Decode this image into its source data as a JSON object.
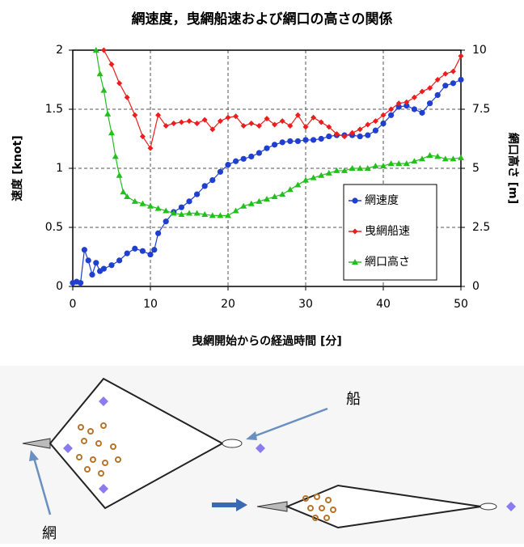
{
  "chart_data": {
    "type": "line",
    "title": "網速度，曳網船速および網口の高さの関係",
    "xlabel": "曳網開始からの経過時間 [分]",
    "ylabel": "速度 [knot]",
    "y2label": "網口高さ [m]",
    "xlim": [
      0,
      50
    ],
    "xticks": [
      0,
      10,
      20,
      30,
      40,
      50
    ],
    "ylim": [
      0,
      2
    ],
    "yticks": [
      0,
      0.5,
      1,
      1.5,
      2
    ],
    "y2lim": [
      0,
      10
    ],
    "y2ticks": [
      0,
      2.5,
      5,
      7.5,
      10
    ],
    "grid": true,
    "legend": "lower right",
    "series": [
      {
        "name": "網速度",
        "color": "#1f3fd0",
        "marker": "circle",
        "x": [
          0,
          0.5,
          1,
          1.5,
          2,
          2.5,
          3,
          3.5,
          4,
          5,
          6,
          7,
          8,
          9,
          10,
          10.5,
          11,
          12,
          13,
          14,
          15,
          16,
          17,
          18,
          19,
          20,
          21,
          22,
          23,
          24,
          25,
          26,
          27,
          28,
          29,
          30,
          31,
          32,
          33,
          34,
          35,
          36,
          37,
          38,
          39,
          40,
          41,
          42,
          43,
          44,
          45,
          46,
          47,
          48,
          49,
          50
        ],
        "values": [
          0.03,
          0.04,
          0.03,
          0.31,
          0.22,
          0.1,
          0.2,
          0.13,
          0.15,
          0.18,
          0.22,
          0.28,
          0.32,
          0.3,
          0.27,
          0.31,
          0.45,
          0.55,
          0.63,
          0.67,
          0.72,
          0.78,
          0.85,
          0.9,
          0.97,
          1.03,
          1.06,
          1.08,
          1.1,
          1.13,
          1.17,
          1.2,
          1.22,
          1.23,
          1.23,
          1.24,
          1.24,
          1.25,
          1.27,
          1.28,
          1.28,
          1.28,
          1.27,
          1.28,
          1.32,
          1.38,
          1.45,
          1.52,
          1.53,
          1.5,
          1.47,
          1.55,
          1.62,
          1.7,
          1.72,
          1.75
        ]
      },
      {
        "name": "曳網船速",
        "color": "#ee1c1c",
        "marker": "diamond",
        "x": [
          4,
          5,
          6,
          7,
          8,
          9,
          10,
          11,
          12,
          13,
          14,
          15,
          16,
          17,
          18,
          19,
          20,
          21,
          22,
          23,
          24,
          25,
          26,
          27,
          28,
          29,
          30,
          31,
          32,
          33,
          34,
          35,
          36,
          37,
          38,
          39,
          40,
          41,
          42,
          43,
          44,
          45,
          46,
          47,
          48,
          49,
          50
        ],
        "values": [
          2.0,
          1.88,
          1.72,
          1.6,
          1.45,
          1.27,
          1.17,
          1.45,
          1.36,
          1.38,
          1.39,
          1.4,
          1.38,
          1.41,
          1.33,
          1.4,
          1.43,
          1.44,
          1.36,
          1.38,
          1.36,
          1.42,
          1.37,
          1.4,
          1.36,
          1.45,
          1.35,
          1.43,
          1.39,
          1.35,
          1.29,
          1.27,
          1.3,
          1.33,
          1.37,
          1.4,
          1.45,
          1.5,
          1.55,
          1.56,
          1.6,
          1.65,
          1.68,
          1.75,
          1.8,
          1.82,
          1.95
        ]
      },
      {
        "name": "網口高さ",
        "color": "#22c01c",
        "marker": "triangle",
        "axis": "y2",
        "x": [
          3,
          3.5,
          4,
          4.5,
          5,
          5.5,
          6,
          6.5,
          7,
          8,
          9,
          10,
          11,
          12,
          13,
          14,
          15,
          16,
          17,
          18,
          19,
          20,
          21,
          22,
          23,
          24,
          25,
          26,
          27,
          28,
          29,
          30,
          31,
          32,
          33,
          34,
          35,
          36,
          37,
          38,
          39,
          40,
          41,
          42,
          43,
          44,
          45,
          46,
          47,
          48,
          49,
          50
        ],
        "values": [
          10,
          9.0,
          8.3,
          7.3,
          6.5,
          5.5,
          4.7,
          4.0,
          3.8,
          3.6,
          3.5,
          3.4,
          3.3,
          3.2,
          3.1,
          3.05,
          3.1,
          3.1,
          3.05,
          3.0,
          3.0,
          3.0,
          3.2,
          3.4,
          3.5,
          3.6,
          3.7,
          3.8,
          3.9,
          4.1,
          4.3,
          4.5,
          4.6,
          4.7,
          4.8,
          4.9,
          4.9,
          5.0,
          5.0,
          5.0,
          5.1,
          5.1,
          5.2,
          5.2,
          5.2,
          5.3,
          5.4,
          5.55,
          5.5,
          5.4,
          5.4,
          5.45
        ]
      }
    ]
  },
  "diagram": {
    "ship_label": "船",
    "net_label": "網"
  }
}
